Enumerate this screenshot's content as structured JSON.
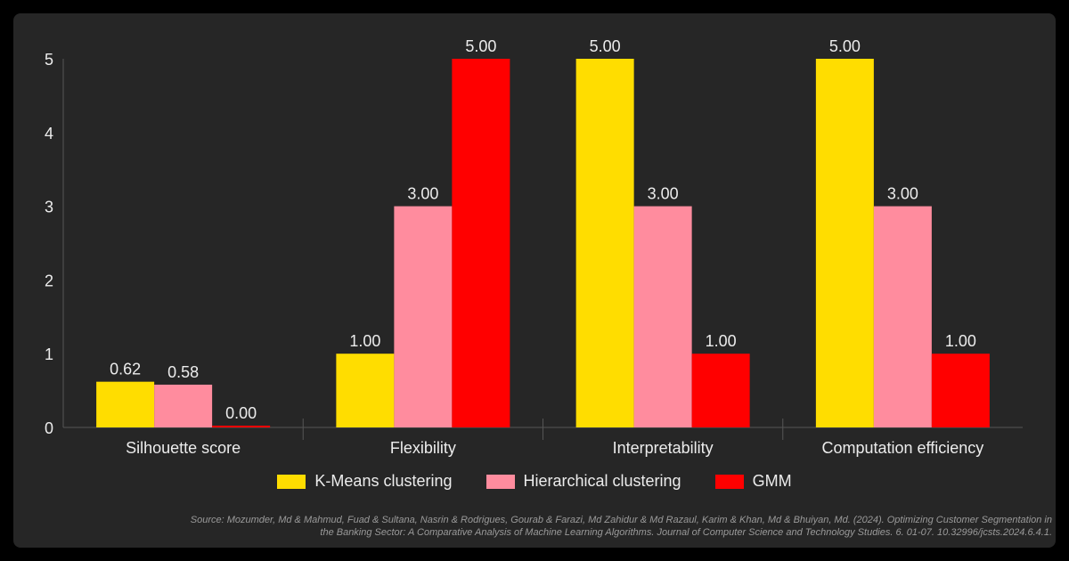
{
  "chart_data": {
    "type": "bar",
    "categories": [
      "Silhouette score",
      "Flexibility",
      "Interpretability",
      "Computation efficiency"
    ],
    "series": [
      {
        "name": "K-Means clustering",
        "color": "#FFDD00",
        "values": [
          0.62,
          1.0,
          5.0,
          5.0
        ]
      },
      {
        "name": "Hierarchical clustering",
        "color": "#FF8C9E",
        "values": [
          0.58,
          3.0,
          3.0,
          3.0
        ]
      },
      {
        "name": "GMM",
        "color": "#FF0000",
        "values": [
          0.0,
          5.0,
          1.0,
          1.0
        ]
      }
    ],
    "value_labels": [
      [
        "0.62",
        "1.00",
        "5.00",
        "5.00"
      ],
      [
        "0.58",
        "3.00",
        "3.00",
        "3.00"
      ],
      [
        "0.00",
        "5.00",
        "1.00",
        "1.00"
      ]
    ],
    "yticks": [
      "0",
      "1",
      "2",
      "3",
      "4",
      "5"
    ],
    "ylim": [
      0,
      5
    ],
    "grid": false,
    "legend_position": "bottom-center",
    "title": "",
    "xlabel": "",
    "ylabel": ""
  },
  "source": "Source: Mozumder, Md & Mahmud, Fuad & Sultana, Nasrin & Rodrigues, Gourab & Farazi, Md Zahidur & Md Razaul, Karim & Khan, Md & Bhuiyan, Md. (2024). Optimizing Customer Segmentation in the Banking Sector: A Comparative Analysis of Machine Learning Algorithms. Journal of Computer Science and Technology Studies. 6. 01-07. 10.32996/jcsts.2024.6.4.1.",
  "colors": {
    "background": "#262626",
    "text": "#ECECEC",
    "axis": "#555555"
  }
}
